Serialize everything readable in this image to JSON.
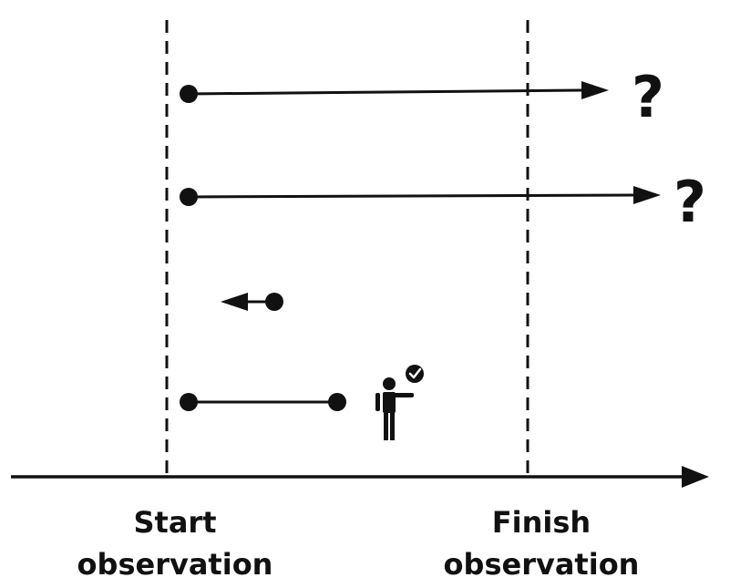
{
  "labels": {
    "start_line1": "Start",
    "start_line2": "observation",
    "finish_line1": "Finish",
    "finish_line2": "observation"
  },
  "markers": {
    "unknown_end_1": "?",
    "unknown_end_2": "?"
  },
  "icons": {
    "person": "person-with-checkmark-icon"
  },
  "colors": {
    "ink": "#111111",
    "background": "#ffffff"
  }
}
